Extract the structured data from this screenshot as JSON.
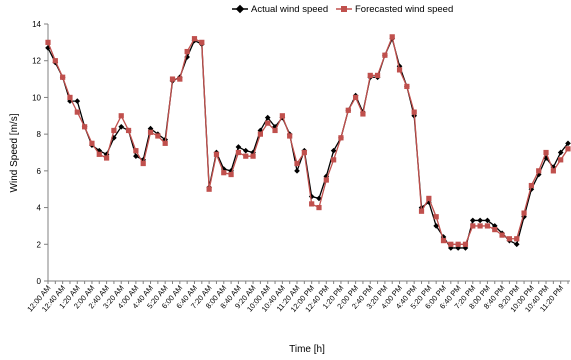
{
  "chart_data": {
    "type": "line",
    "xlabel": "Time [h]",
    "ylabel": "Wind Speed [m/s]",
    "ylim": [
      0,
      14
    ],
    "yticks": [
      0,
      2,
      4,
      6,
      8,
      10,
      12,
      14
    ],
    "grid": false,
    "legend_position": "top-right",
    "x": [
      "12:00 AM",
      "12:20 AM",
      "12:40 AM",
      "1:00 AM",
      "1:20 AM",
      "1:40 AM",
      "2:00 AM",
      "2:20 AM",
      "2:40 AM",
      "3:00 AM",
      "3:20 AM",
      "3:40 AM",
      "4:00 AM",
      "4:20 AM",
      "4:40 AM",
      "5:00 AM",
      "5:20 AM",
      "5:40 AM",
      "6:00 AM",
      "6:20 AM",
      "6:40 AM",
      "7:00 AM",
      "7:20 AM",
      "7:40 AM",
      "8:00 AM",
      "8:20 AM",
      "8:40 AM",
      "9:00 AM",
      "9:20 AM",
      "9:40 AM",
      "10:00 AM",
      "10:20 AM",
      "10:40 AM",
      "11:00 AM",
      "11:20 AM",
      "11:40 AM",
      "12:00 PM",
      "12:20 PM",
      "12:40 PM",
      "1:00 PM",
      "1:20 PM",
      "1:40 PM",
      "2:00 PM",
      "2:20 PM",
      "2:40 PM",
      "3:00 PM",
      "3:20 PM",
      "3:40 PM",
      "4:00 PM",
      "4:20 PM",
      "4:40 PM",
      "5:00 PM",
      "5:20 PM",
      "5:40 PM",
      "6:00 PM",
      "6:20 PM",
      "6:40 PM",
      "7:00 PM",
      "7:20 PM",
      "7:40 PM",
      "8:00 PM",
      "8:20 PM",
      "8:40 PM",
      "9:00 PM",
      "9:20 PM",
      "9:40 PM",
      "10:00 PM",
      "10:20 PM",
      "10:40 PM",
      "11:00 PM",
      "11:20 PM",
      "11:40 PM"
    ],
    "x_tick_labels": [
      "12:00 AM",
      "12:40 AM",
      "1:20 AM",
      "2:00 AM",
      "2:40 AM",
      "3:20 AM",
      "4:00 AM",
      "4:40 AM",
      "5:20 AM",
      "6:00 AM",
      "6:40 AM",
      "7:20 AM",
      "8:00 AM",
      "8:40 AM",
      "9:20 AM",
      "10:00 AM",
      "10:40 AM",
      "11:20 AM",
      "12:00 PM",
      "12:40 PM",
      "1:20 PM",
      "2:00 PM",
      "2:40 PM",
      "3:20 PM",
      "4:00 PM",
      "4:40 PM",
      "5:20 PM",
      "6:00 PM",
      "6:40 PM",
      "7:20 PM",
      "8:00 PM",
      "8:40 PM",
      "9:20 PM",
      "10:00 PM",
      "10:40 PM",
      "11:20 PM"
    ],
    "series": [
      {
        "name": "Actual wind speed",
        "color": "#000000",
        "marker": "diamond",
        "values": [
          12.7,
          11.9,
          11.1,
          9.8,
          9.8,
          8.4,
          7.4,
          7.1,
          6.9,
          7.8,
          8.4,
          8.2,
          6.8,
          6.6,
          8.3,
          8.0,
          7.7,
          10.9,
          11.1,
          12.2,
          13.1,
          12.9,
          5.1,
          7.0,
          6.1,
          6.0,
          7.3,
          7.1,
          7.0,
          8.2,
          8.9,
          8.4,
          8.9,
          8.0,
          6.0,
          7.1,
          4.6,
          4.5,
          5.7,
          7.1,
          7.8,
          9.3,
          10.1,
          9.2,
          11.1,
          11.1,
          12.3,
          13.2,
          11.7,
          10.6,
          9.0,
          4.0,
          4.3,
          3.0,
          2.4,
          1.8,
          1.8,
          1.8,
          3.3,
          3.3,
          3.3,
          3.0,
          2.6,
          2.2,
          2.0,
          3.5,
          5.0,
          5.8,
          6.7,
          6.2,
          7.0,
          7.5
        ]
      },
      {
        "name": "Forecasted wind speed",
        "color": "#c0504d",
        "marker": "square",
        "values": [
          13.0,
          12.0,
          11.1,
          10.0,
          9.2,
          8.4,
          7.5,
          6.9,
          6.7,
          8.2,
          9.0,
          8.2,
          7.1,
          6.4,
          8.1,
          7.9,
          7.5,
          11.0,
          11.0,
          12.5,
          13.2,
          13.0,
          5.0,
          6.9,
          5.9,
          5.8,
          7.0,
          6.8,
          6.8,
          8.0,
          8.6,
          8.2,
          9.0,
          7.9,
          6.4,
          7.0,
          4.2,
          4.0,
          5.5,
          6.6,
          7.8,
          9.3,
          10.0,
          9.1,
          11.2,
          11.2,
          12.3,
          13.3,
          11.5,
          10.6,
          9.2,
          3.8,
          4.5,
          3.5,
          2.2,
          2.0,
          2.0,
          2.0,
          3.0,
          3.0,
          3.0,
          2.8,
          2.5,
          2.3,
          2.3,
          3.7,
          5.2,
          6.0,
          7.0,
          6.0,
          6.6,
          7.2
        ]
      }
    ]
  }
}
